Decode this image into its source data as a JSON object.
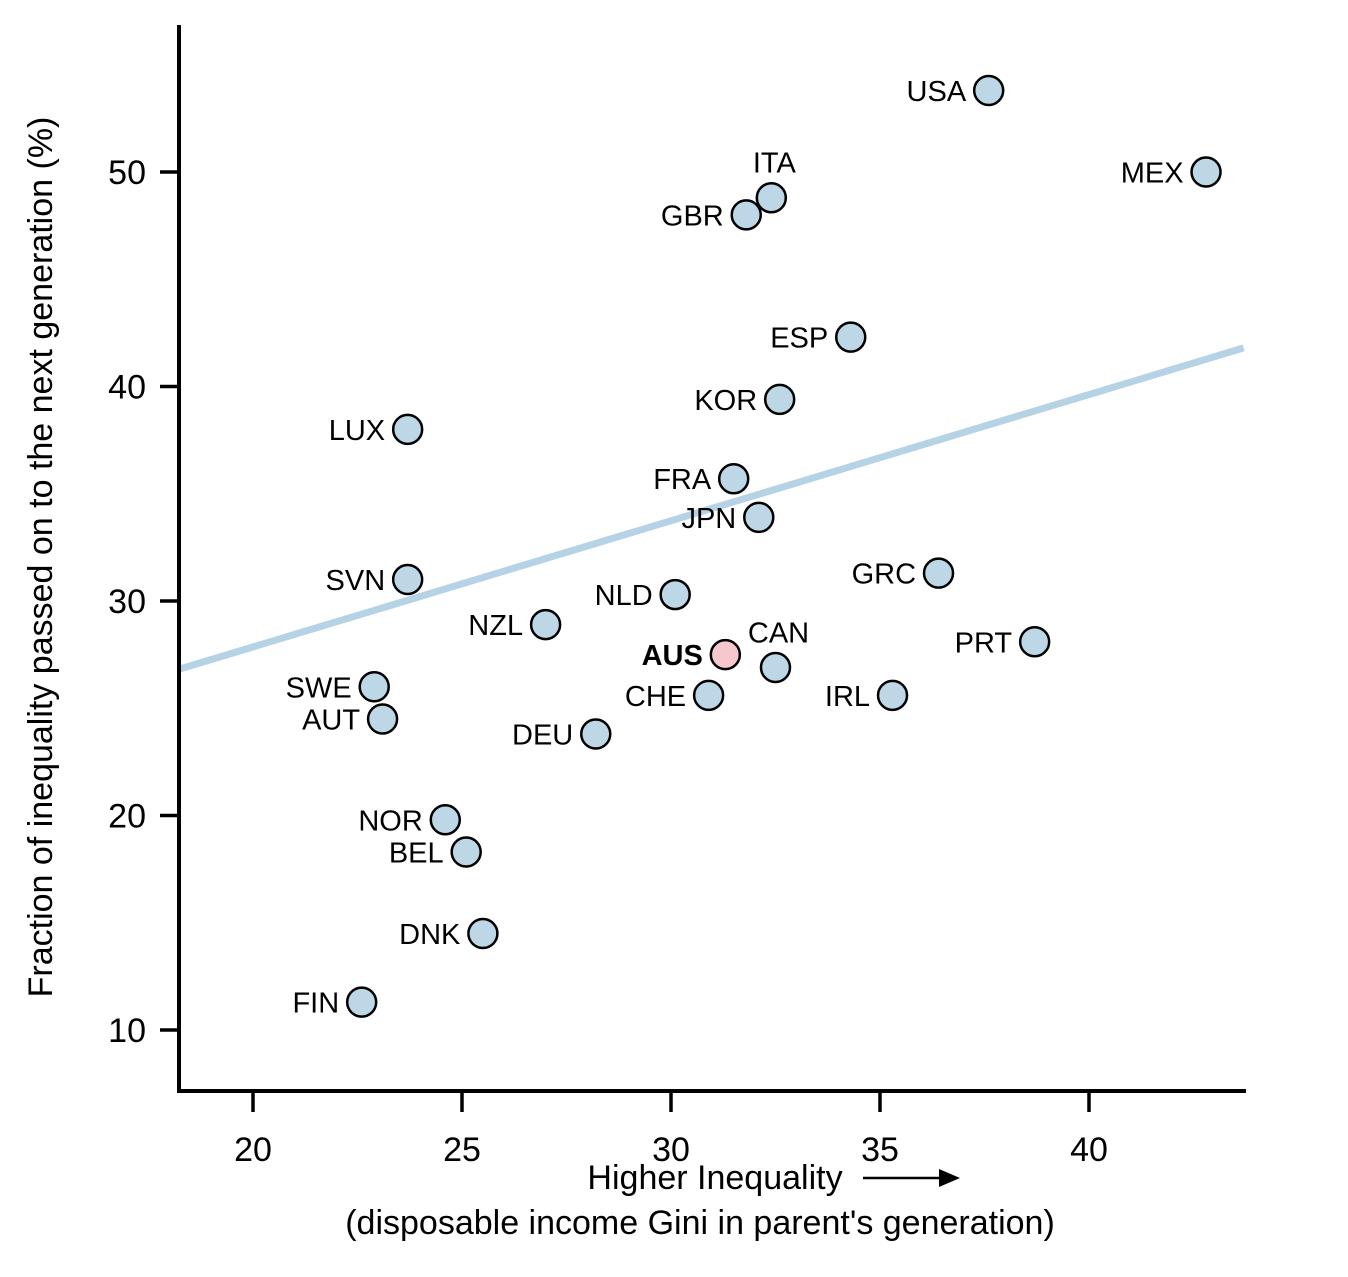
{
  "chart_data": {
    "type": "scatter",
    "title": "",
    "ylabel": "Fraction of inequality passed on to the next generation (%)",
    "xlabel_line1": "Higher Inequality",
    "xlabel_line2": "(disposable income Gini in parent's generation)",
    "xlim": [
      18.2,
      43.8
    ],
    "ylim": [
      7,
      57
    ],
    "x_ticks": [
      20,
      25,
      30,
      35,
      40
    ],
    "y_ticks": [
      10,
      20,
      30,
      40,
      50
    ],
    "grid": false,
    "legend": false,
    "points": [
      {
        "code": "USA",
        "x": 37.6,
        "y": 53.8,
        "label_pos": "left",
        "highlight": false
      },
      {
        "code": "MEX",
        "x": 42.8,
        "y": 50.0,
        "label_pos": "left",
        "highlight": false
      },
      {
        "code": "ITA",
        "x": 32.4,
        "y": 48.8,
        "label_pos": "above",
        "highlight": false
      },
      {
        "code": "GBR",
        "x": 31.8,
        "y": 48.0,
        "label_pos": "left",
        "highlight": false
      },
      {
        "code": "ESP",
        "x": 34.3,
        "y": 42.3,
        "label_pos": "left",
        "highlight": false
      },
      {
        "code": "KOR",
        "x": 32.6,
        "y": 39.4,
        "label_pos": "left",
        "highlight": false
      },
      {
        "code": "LUX",
        "x": 23.7,
        "y": 38.0,
        "label_pos": "left",
        "highlight": false
      },
      {
        "code": "FRA",
        "x": 31.5,
        "y": 35.7,
        "label_pos": "left",
        "highlight": false
      },
      {
        "code": "JPN",
        "x": 32.1,
        "y": 33.9,
        "label_pos": "left",
        "highlight": false
      },
      {
        "code": "GRC",
        "x": 36.4,
        "y": 31.3,
        "label_pos": "left",
        "highlight": false
      },
      {
        "code": "SVN",
        "x": 23.7,
        "y": 31.0,
        "label_pos": "left",
        "highlight": false
      },
      {
        "code": "NLD",
        "x": 30.1,
        "y": 30.3,
        "label_pos": "left",
        "highlight": false
      },
      {
        "code": "NZL",
        "x": 27.0,
        "y": 28.9,
        "label_pos": "left",
        "highlight": false
      },
      {
        "code": "PRT",
        "x": 38.7,
        "y": 28.1,
        "label_pos": "left",
        "highlight": false
      },
      {
        "code": "AUS",
        "x": 31.3,
        "y": 27.5,
        "label_pos": "left",
        "highlight": true
      },
      {
        "code": "CAN",
        "x": 32.5,
        "y": 26.9,
        "label_pos": "above",
        "highlight": false
      },
      {
        "code": "SWE",
        "x": 22.9,
        "y": 26.0,
        "label_pos": "left",
        "highlight": false
      },
      {
        "code": "CHE",
        "x": 30.9,
        "y": 25.6,
        "label_pos": "left",
        "highlight": false
      },
      {
        "code": "IRL",
        "x": 35.3,
        "y": 25.6,
        "label_pos": "left",
        "highlight": false
      },
      {
        "code": "AUT",
        "x": 23.1,
        "y": 24.5,
        "label_pos": "left",
        "highlight": false
      },
      {
        "code": "DEU",
        "x": 28.2,
        "y": 23.8,
        "label_pos": "left",
        "highlight": false
      },
      {
        "code": "NOR",
        "x": 24.6,
        "y": 19.8,
        "label_pos": "left",
        "highlight": false
      },
      {
        "code": "BEL",
        "x": 25.1,
        "y": 18.3,
        "label_pos": "left",
        "highlight": false
      },
      {
        "code": "DNK",
        "x": 25.5,
        "y": 14.5,
        "label_pos": "left",
        "highlight": false
      },
      {
        "code": "FIN",
        "x": 22.6,
        "y": 11.3,
        "label_pos": "left",
        "highlight": false
      }
    ],
    "trend_line": {
      "x1": 18.2,
      "y1": 26.8,
      "x2": 43.7,
      "y2": 41.8
    }
  },
  "colors": {
    "point_fill": "#bdd7e6",
    "point_stroke": "#000000",
    "highlight_fill": "#f6c8ce",
    "highlight_label": "#e93e2e",
    "trend": "#b5d3e4",
    "axis": "#000000",
    "background": "#ffffff"
  }
}
